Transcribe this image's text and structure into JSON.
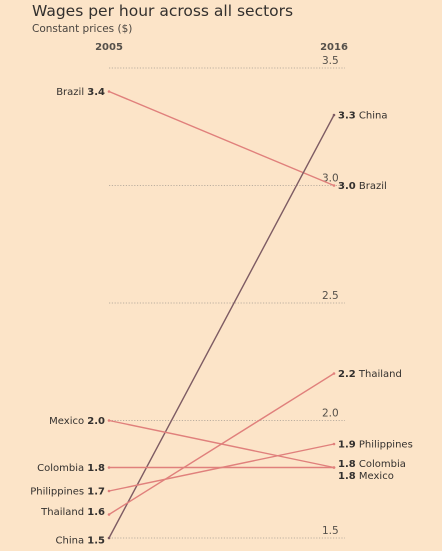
{
  "title": "Wages per hour across all sectors",
  "subtitle": "Constant prices ($)",
  "chart_data": {
    "type": "slope",
    "title": "Wages per hour across all sectors",
    "ylabel": "Constant prices ($)",
    "x": [
      "2005",
      "2016"
    ],
    "ylim": [
      1.5,
      3.5
    ],
    "yticks": [
      "3.5",
      "3.0",
      "2.5",
      "2.0",
      "1.5"
    ],
    "grid": true,
    "series": [
      {
        "name": "Brazil",
        "start": 3.4,
        "end": 3.0,
        "start_label": "3.4",
        "end_label": "3.0",
        "color": "#e0807c"
      },
      {
        "name": "China",
        "start": 1.5,
        "end": 3.3,
        "start_label": "1.5",
        "end_label": "3.3",
        "color": "#7d5b63"
      },
      {
        "name": "Thailand",
        "start": 1.6,
        "end": 2.2,
        "start_label": "1.6",
        "end_label": "2.2",
        "color": "#e0807c"
      },
      {
        "name": "Philippines",
        "start": 1.7,
        "end": 1.9,
        "start_label": "1.7",
        "end_label": "1.9",
        "color": "#e0807c"
      },
      {
        "name": "Colombia",
        "start": 1.8,
        "end": 1.8,
        "start_label": "1.8",
        "end_label": "1.8",
        "color": "#e0807c"
      },
      {
        "name": "Mexico",
        "start": 2.0,
        "end": 1.8,
        "start_label": "2.0",
        "end_label": "1.8",
        "color": "#e0807c"
      }
    ]
  }
}
